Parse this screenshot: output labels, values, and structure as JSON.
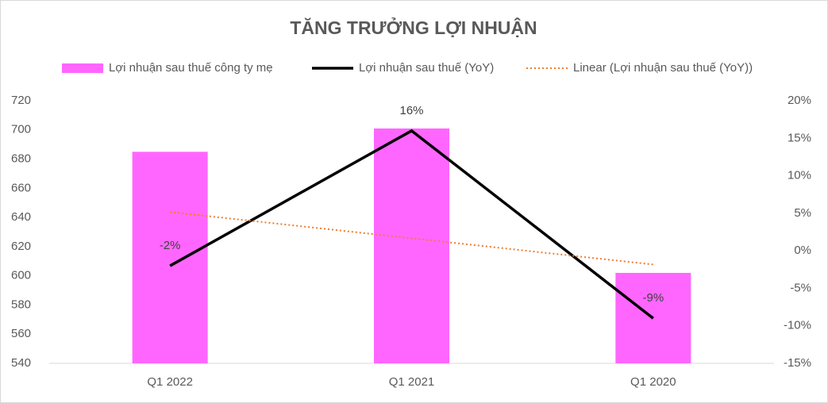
{
  "chart_data": {
    "type": "combo",
    "title": "TĂNG TRƯỞNG LỢI NHUẬN",
    "categories": [
      "Q1 2022",
      "Q1 2021",
      "Q1 2020"
    ],
    "series": [
      {
        "name": "Lợi nhuận sau thuế công ty mẹ",
        "type": "bar",
        "color": "#ff66ff",
        "values": [
          685,
          701,
          602
        ]
      },
      {
        "name": "Lợi nhuận sau thuế (YoY)",
        "type": "line",
        "axis": "y2",
        "color": "#000000",
        "values": [
          -2,
          16,
          -9
        ],
        "value_labels": [
          "-2%",
          "16%",
          "-9%"
        ]
      },
      {
        "name": "Linear (Lợi nhuận sau thuế (YoY))",
        "type": "trendline",
        "axis": "y2",
        "color": "#ed7d31",
        "values": [
          5.17,
          1.67,
          -1.83
        ]
      }
    ],
    "ylim": [
      540,
      720
    ],
    "yticks": [
      540,
      560,
      580,
      600,
      620,
      640,
      660,
      680,
      700,
      720
    ],
    "y2lim": [
      -15,
      20
    ],
    "y2ticks": [
      {
        "value": -15,
        "label": "-15%"
      },
      {
        "value": -10,
        "label": "-10%"
      },
      {
        "value": -5,
        "label": "-5%"
      },
      {
        "value": 0,
        "label": "0%"
      },
      {
        "value": 5,
        "label": "5%"
      },
      {
        "value": 10,
        "label": "10%"
      },
      {
        "value": 15,
        "label": "15%"
      },
      {
        "value": 20,
        "label": "20%"
      }
    ],
    "legend": "top",
    "grid": false
  }
}
